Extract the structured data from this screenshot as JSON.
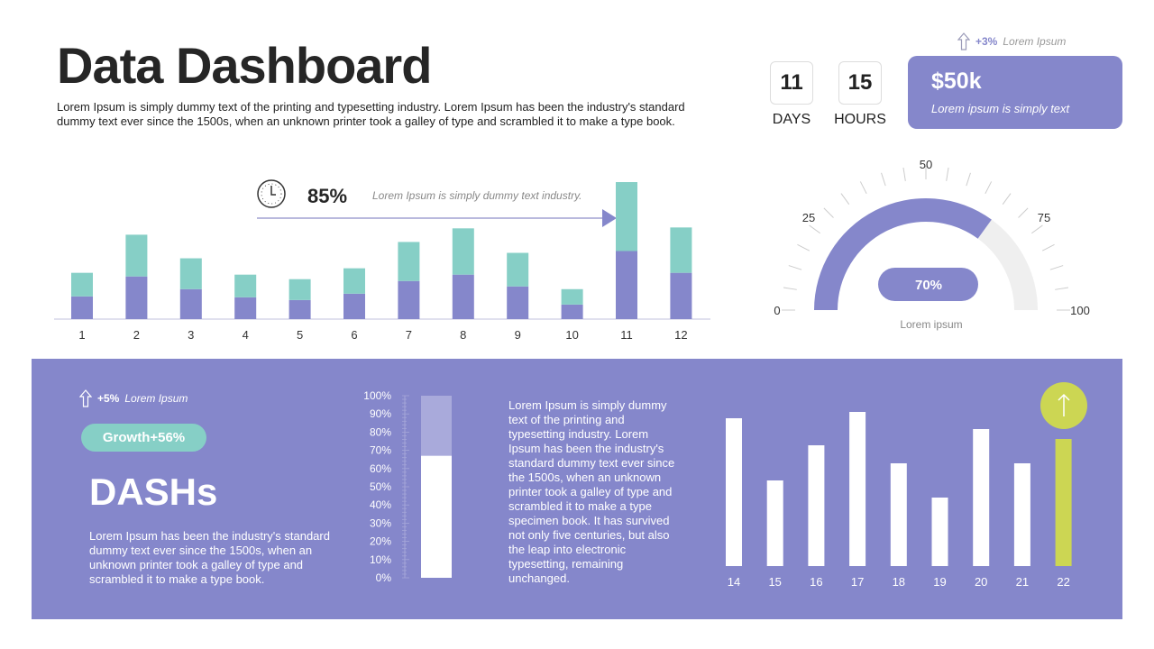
{
  "header": {
    "title": "Data Dashboard",
    "intro": "Lorem Ipsum is simply dummy text of the printing and typesetting industry. Lorem Ipsum has been the industry's standard dummy text ever since the 1500s, when an unknown printer took a galley of type and scrambled it to make a type book."
  },
  "countdown": [
    {
      "value": "11",
      "label": "DAYS"
    },
    {
      "value": "15",
      "label": "HOURS"
    }
  ],
  "kpi": {
    "change": "+3%",
    "change_label": "Lorem Ipsum",
    "value": "$50k",
    "subtitle": "Lorem ipsum is simply text",
    "arrow_icon": "arrow-up-icon"
  },
  "top_callout": {
    "icon": "clock-icon",
    "percent": "85%",
    "text": "Lorem Ipsum is simply dummy text industry."
  },
  "gauge": {
    "value_percent": 70,
    "label": "70%",
    "caption": "Lorem ipsum",
    "ticks": [
      "0",
      "25",
      "50",
      "75",
      "100"
    ]
  },
  "bottom_left": {
    "change": "+5%",
    "change_label": "Lorem Ipsum",
    "badge": "Growth+56%",
    "heading": "DASHs",
    "description": "Lorem Ipsum has been the industry's standard dummy text ever since the 1500s, when an unknown printer took a galley of type and scrambled it to make a type book."
  },
  "progress": {
    "value_percent": 67,
    "ticks": [
      "100%",
      "90%",
      "80%",
      "70%",
      "60%",
      "50%",
      "40%",
      "30%",
      "20%",
      "10%",
      "0%"
    ]
  },
  "mid_text": "Lorem Ipsum is simply dummy text of the printing and typesetting industry. Lorem Ipsum has been the industry's standard dummy text ever since the 1500s, when an unknown printer took a galley of type and scrambled it to make a type specimen book. It has survived not only five centuries, but also the leap into electronic typesetting, remaining unchanged.",
  "colors": {
    "purple": "#8587cb",
    "teal": "#86cfc6",
    "lime": "#ccd653",
    "track": "#efefef"
  },
  "chart_data": [
    {
      "type": "bar",
      "stacked": true,
      "categories": [
        "1",
        "2",
        "3",
        "4",
        "5",
        "6",
        "7",
        "8",
        "9",
        "10",
        "11",
        "12"
      ],
      "series": [
        {
          "values": [
            25,
            47,
            33,
            24,
            21,
            28,
            42,
            49,
            36,
            16,
            75,
            51
          ]
        },
        {
          "values": [
            26,
            46,
            34,
            25,
            23,
            28,
            43,
            51,
            37,
            17,
            76,
            50
          ]
        }
      ],
      "grid": false
    },
    {
      "type": "bar",
      "categories": [
        "14",
        "15",
        "16",
        "17",
        "18",
        "19",
        "20",
        "21",
        "22"
      ],
      "values": [
        164,
        95,
        134,
        171,
        114,
        76,
        152,
        114,
        141
      ],
      "highlight": "22",
      "grid": false
    }
  ]
}
